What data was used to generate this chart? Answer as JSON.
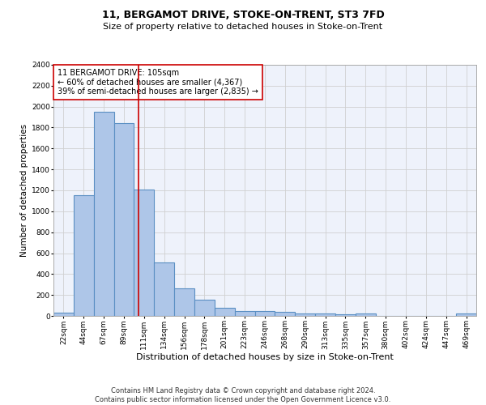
{
  "title": "11, BERGAMOT DRIVE, STOKE-ON-TRENT, ST3 7FD",
  "subtitle": "Size of property relative to detached houses in Stoke-on-Trent",
  "xlabel": "Distribution of detached houses by size in Stoke-on-Trent",
  "ylabel": "Number of detached properties",
  "footnote": "Contains HM Land Registry data © Crown copyright and database right 2024.\nContains public sector information licensed under the Open Government Licence v3.0.",
  "bar_labels": [
    "22sqm",
    "44sqm",
    "67sqm",
    "89sqm",
    "111sqm",
    "134sqm",
    "156sqm",
    "178sqm",
    "201sqm",
    "223sqm",
    "246sqm",
    "268sqm",
    "290sqm",
    "313sqm",
    "335sqm",
    "357sqm",
    "380sqm",
    "402sqm",
    "424sqm",
    "447sqm",
    "469sqm"
  ],
  "bar_values": [
    30,
    1150,
    1950,
    1840,
    1210,
    510,
    265,
    155,
    80,
    50,
    45,
    40,
    25,
    20,
    12,
    20,
    0,
    0,
    0,
    0,
    20
  ],
  "bar_color": "#aec6e8",
  "bar_edgecolor": "#5a8fc3",
  "bar_linewidth": 0.8,
  "vline_color": "#cc0000",
  "vline_linewidth": 1.2,
  "annotation_text": "11 BERGAMOT DRIVE: 105sqm\n← 60% of detached houses are smaller (4,367)\n39% of semi-detached houses are larger (2,835) →",
  "annotation_box_edgecolor": "#cc0000",
  "annotation_box_facecolor": "#ffffff",
  "ylim": [
    0,
    2400
  ],
  "yticks": [
    0,
    200,
    400,
    600,
    800,
    1000,
    1200,
    1400,
    1600,
    1800,
    2000,
    2200,
    2400
  ],
  "grid_color": "#d0d0d0",
  "background_color": "#eef2fb",
  "title_fontsize": 9,
  "subtitle_fontsize": 8,
  "xlabel_fontsize": 8,
  "ylabel_fontsize": 7.5,
  "tick_fontsize": 6.5,
  "annotation_fontsize": 7,
  "footnote_fontsize": 6
}
